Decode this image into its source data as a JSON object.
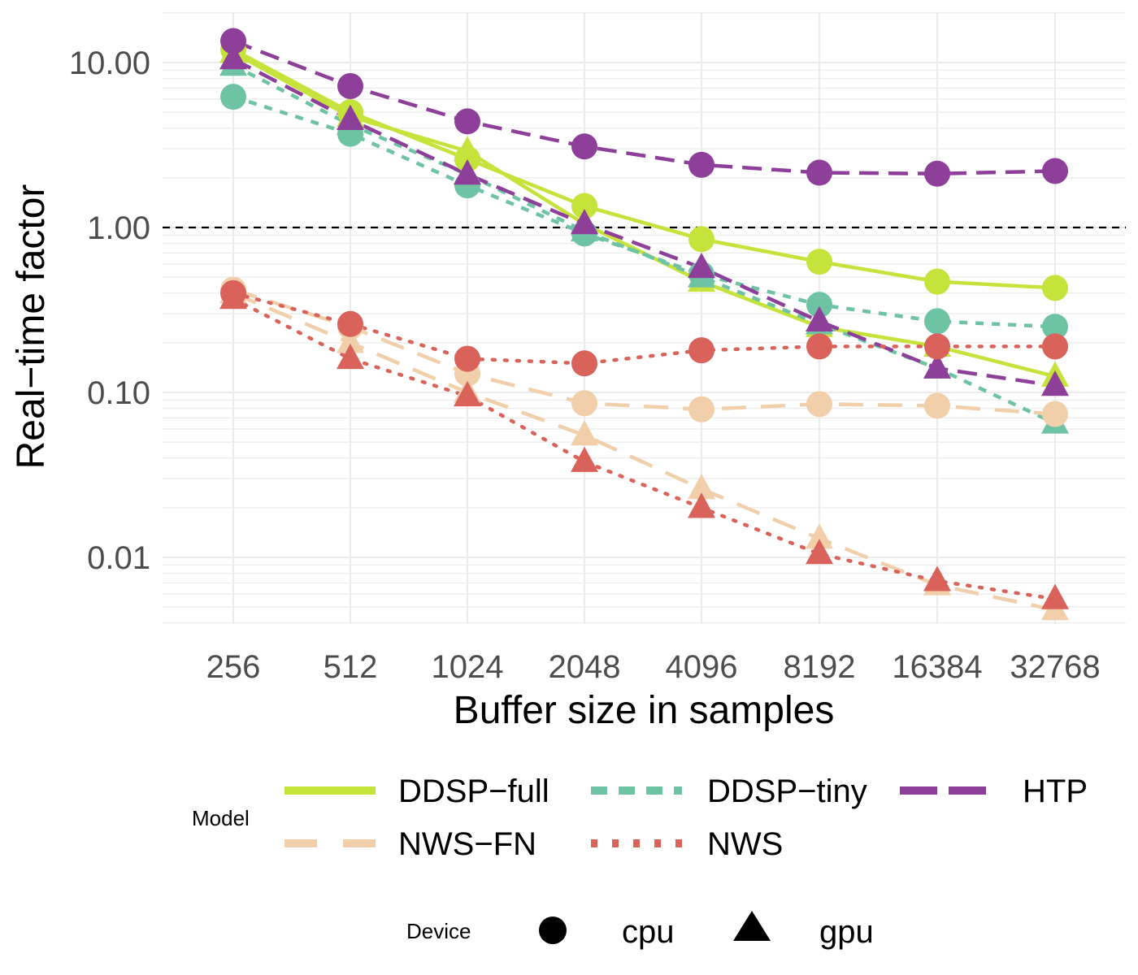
{
  "chart_data": {
    "type": "line",
    "xlabel": "Buffer size in samples",
    "ylabel": "Real−time factor",
    "x": [
      256,
      512,
      1024,
      2048,
      4096,
      8192,
      16384,
      32768
    ],
    "x_tick_labels": [
      "256",
      "512",
      "1024",
      "2048",
      "4096",
      "8192",
      "16384",
      "32768"
    ],
    "y_scale": "log10",
    "ylim": [
      0.0035,
      15
    ],
    "y_ticks": [
      10,
      1,
      0.1,
      0.01
    ],
    "y_tick_labels": [
      "10.00",
      "1.00",
      "0.10",
      "0.01"
    ],
    "reference_line": {
      "y": 1,
      "style": "dashed",
      "color": "#000000"
    },
    "grid": true,
    "series": [
      {
        "model": "DDSP−full",
        "device": "cpu",
        "color": "#c5e33b",
        "dash": "solid",
        "values": [
          12.0,
          5.0,
          2.6,
          1.35,
          0.85,
          0.62,
          0.47,
          0.43
        ]
      },
      {
        "model": "DDSP−full",
        "device": "gpu",
        "color": "#c5e33b",
        "dash": "solid",
        "values": [
          11.5,
          4.7,
          2.9,
          1.05,
          0.47,
          0.25,
          0.19,
          0.125
        ]
      },
      {
        "model": "DDSP−tiny",
        "device": "cpu",
        "color": "#6ec3a5",
        "dash": "dashed-short",
        "values": [
          6.2,
          3.7,
          1.8,
          0.92,
          0.52,
          0.34,
          0.27,
          0.25
        ]
      },
      {
        "model": "DDSP−tiny",
        "device": "gpu",
        "color": "#6ec3a5",
        "dash": "dashed-short",
        "values": [
          9.6,
          4.2,
          2.1,
          0.95,
          0.5,
          0.26,
          0.14,
          0.065
        ]
      },
      {
        "model": "HTP",
        "device": "cpu",
        "color": "#8e3f9a",
        "dash": "dashed-long",
        "values": [
          13.5,
          7.2,
          4.4,
          3.1,
          2.4,
          2.15,
          2.12,
          2.2
        ]
      },
      {
        "model": "HTP",
        "device": "gpu",
        "color": "#8e3f9a",
        "dash": "dashed-long",
        "values": [
          10.5,
          4.5,
          2.1,
          1.05,
          0.57,
          0.27,
          0.14,
          0.11
        ]
      },
      {
        "model": "NWS−FN",
        "device": "cpu",
        "color": "#f1cfaa",
        "dash": "dashed-longer",
        "values": [
          0.42,
          0.25,
          0.13,
          0.086,
          0.079,
          0.085,
          0.083,
          0.074
        ]
      },
      {
        "model": "NWS−FN",
        "device": "gpu",
        "color": "#f1cfaa",
        "dash": "dashed-longer",
        "values": [
          0.4,
          0.2,
          0.1,
          0.055,
          0.026,
          0.013,
          0.0068,
          0.0048
        ]
      },
      {
        "model": "NWS",
        "device": "cpu",
        "color": "#d9625a",
        "dash": "dotted",
        "values": [
          0.4,
          0.26,
          0.16,
          0.15,
          0.18,
          0.19,
          0.19,
          0.19
        ]
      },
      {
        "model": "NWS",
        "device": "gpu",
        "color": "#d9625a",
        "dash": "dotted",
        "values": [
          0.37,
          0.16,
          0.095,
          0.038,
          0.02,
          0.0105,
          0.0072,
          0.0056
        ]
      }
    ],
    "legend": {
      "placement": "bottom",
      "model_title": "Model",
      "models": [
        {
          "label": "DDSP−full",
          "color": "#c5e33b",
          "dash": "solid"
        },
        {
          "label": "DDSP−tiny",
          "color": "#6ec3a5",
          "dash": "dashed-short"
        },
        {
          "label": "HTP",
          "color": "#8e3f9a",
          "dash": "dashed-long"
        },
        {
          "label": "NWS−FN",
          "color": "#f1cfaa",
          "dash": "dashed-longer"
        },
        {
          "label": "NWS",
          "color": "#d9625a",
          "dash": "dotted"
        }
      ],
      "device_title": "Device",
      "devices": [
        {
          "label": "cpu",
          "shape": "circle"
        },
        {
          "label": "gpu",
          "shape": "triangle"
        }
      ]
    }
  }
}
